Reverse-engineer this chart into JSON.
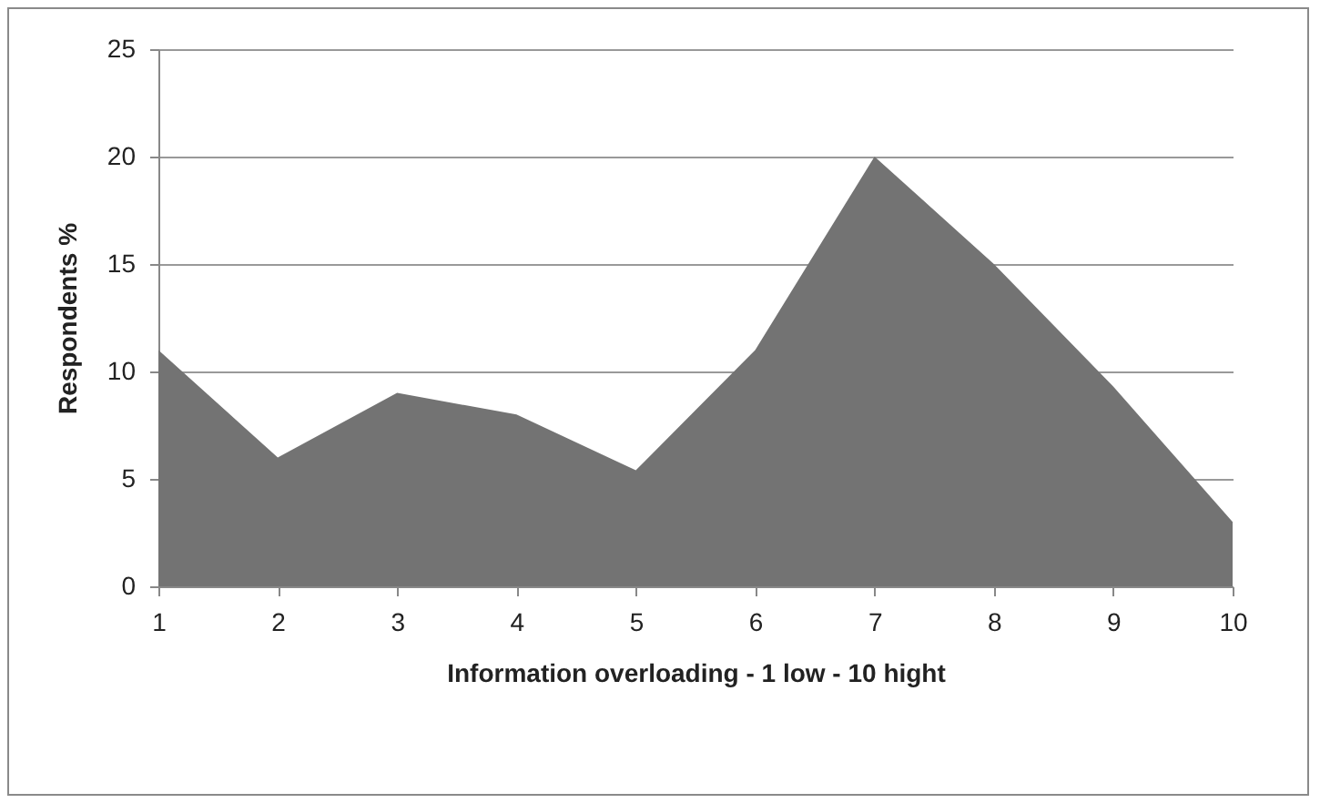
{
  "chart_data": {
    "type": "area",
    "xlabel": "Information overloading - 1 low - 10 hight",
    "ylabel": "Respondents %",
    "categories": [
      "1",
      "2",
      "3",
      "4",
      "5",
      "6",
      "7",
      "8",
      "9",
      "10"
    ],
    "series": [
      {
        "color": "#737373",
        "values": [
          11,
          6,
          9,
          8,
          5.4,
          11,
          20,
          15,
          9.3,
          3
        ]
      }
    ],
    "ylim": [
      0,
      25
    ],
    "yticks": [
      0,
      5,
      10,
      15,
      20,
      25
    ],
    "grid": "y"
  }
}
